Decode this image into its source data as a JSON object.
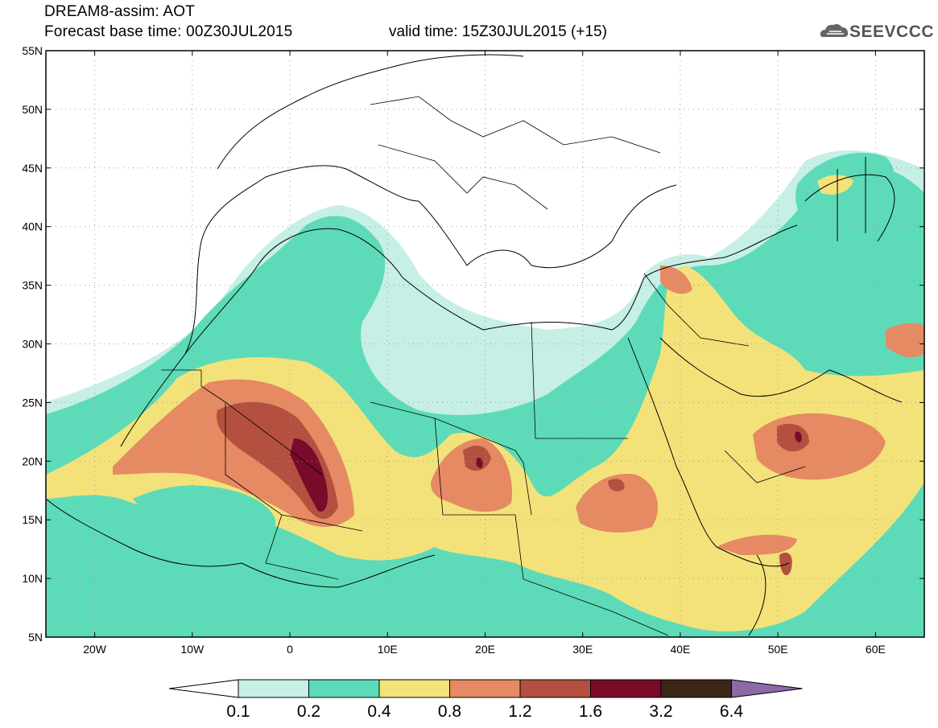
{
  "header": {
    "title": "DREAM8-assim: AOT",
    "base_time": "Forecast base time: 00Z30JUL2015",
    "valid_time": "valid time: 15Z30JUL2015 (+15)"
  },
  "logo": {
    "text": "SEEVCCC",
    "icon": "cloud-icon"
  },
  "map": {
    "lon_range": [
      -25,
      65
    ],
    "lat_range": [
      5,
      55
    ],
    "lat_labels": [
      "55N",
      "50N",
      "45N",
      "40N",
      "35N",
      "30N",
      "25N",
      "20N",
      "15N",
      "10N",
      "5N"
    ],
    "lon_labels": [
      "20W",
      "10W",
      "0",
      "10E",
      "20E",
      "30E",
      "40E",
      "50E",
      "60E"
    ],
    "grid": "dotted"
  },
  "colorbar": {
    "labels": [
      "0.1",
      "0.2",
      "0.4",
      "0.8",
      "1.2",
      "1.6",
      "3.2",
      "6.4"
    ],
    "colors": [
      "#ffffff",
      "#c6efe6",
      "#5ddbb8",
      "#f3e27a",
      "#e58a62",
      "#b4503f",
      "#7a0a2a",
      "#3d2618",
      "#8c6aa8"
    ]
  }
}
